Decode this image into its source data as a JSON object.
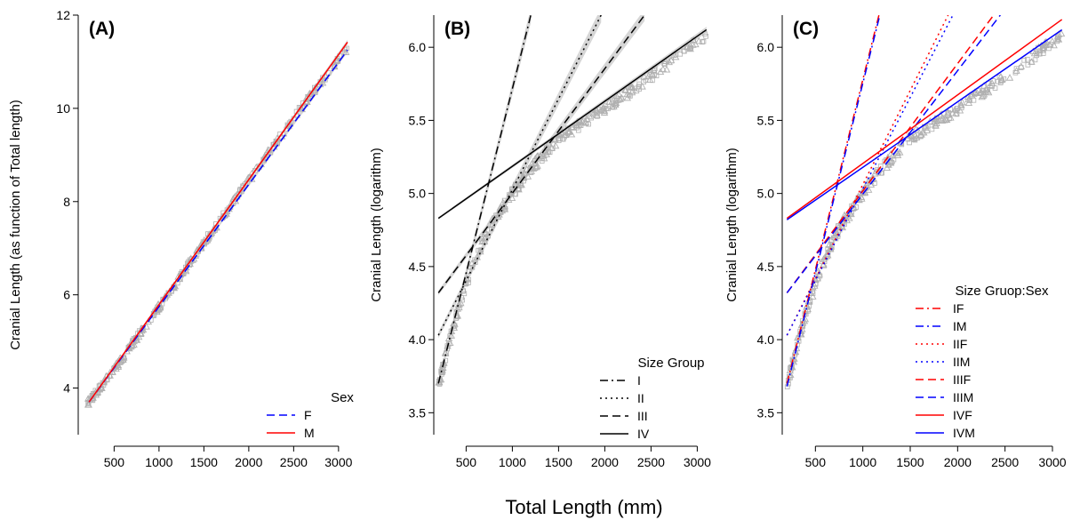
{
  "figure": {
    "x_axis_title": "Total Length (mm)"
  },
  "chart_data": [
    {
      "type": "scatter",
      "panel_label": "(A)",
      "xlabel": "Total Length (mm)",
      "ylabel": "Cranial Length (as function of Total length)",
      "xlim": [
        100,
        3150
      ],
      "ylim": [
        3.0,
        12.0
      ],
      "x_ticks": [
        500,
        1000,
        1500,
        2000,
        2500,
        3000
      ],
      "y_ticks": [
        4,
        6,
        8,
        10,
        12
      ],
      "grid": false,
      "legend": {
        "title": "Sex",
        "placement": "bottom-right"
      },
      "series": [
        {
          "name": "F",
          "color": "#0000ff",
          "dash": "dashed",
          "x": [
            220,
            3100
          ],
          "y": [
            3.7,
            11.25
          ],
          "band": 0.05
        },
        {
          "name": "M",
          "color": "#ff0000",
          "dash": "solid",
          "x": [
            220,
            3100
          ],
          "y": [
            3.7,
            11.42
          ],
          "band": 0.05
        }
      ],
      "points": {
        "markers": [
          "triangle",
          "square"
        ],
        "color": "#b0b0b0",
        "curve": [
          [
            220,
            3.7
          ],
          [
            500,
            4.4
          ],
          [
            1000,
            5.75
          ],
          [
            1500,
            7.12
          ],
          [
            2000,
            8.45
          ],
          [
            2500,
            9.8
          ],
          [
            3100,
            11.3
          ]
        ],
        "spread": 0.07,
        "count": 320,
        "xrange": [
          210,
          3100
        ]
      }
    },
    {
      "type": "scatter",
      "panel_label": "(B)",
      "xlabel": "Total Length (mm)",
      "ylabel": "Cranial Length (logarithm)",
      "xlim": [
        150,
        3150
      ],
      "ylim": [
        3.35,
        6.22
      ],
      "x_ticks": [
        500,
        1000,
        1500,
        2000,
        2500,
        3000
      ],
      "y_ticks": [
        3.5,
        4.0,
        4.5,
        5.0,
        5.5,
        6.0
      ],
      "grid": false,
      "legend": {
        "title": "Size Group",
        "placement": "bottom-right"
      },
      "series": [
        {
          "name": "I",
          "color": "#000000",
          "dash": "dashdot",
          "x": [
            200,
            1200
          ],
          "y": [
            3.7,
            6.22
          ],
          "band": 0.05
        },
        {
          "name": "II",
          "color": "#000000",
          "dash": "dotted",
          "x": [
            200,
            1960
          ],
          "y": [
            4.03,
            6.22
          ],
          "band": 0.05
        },
        {
          "name": "III",
          "color": "#000000",
          "dash": "dashed",
          "x": [
            200,
            2430
          ],
          "y": [
            4.32,
            6.22
          ],
          "band": 0.04
        },
        {
          "name": "IV",
          "color": "#000000",
          "dash": "solid",
          "x": [
            200,
            3100
          ],
          "y": [
            4.83,
            6.12
          ],
          "band": 0.02
        }
      ],
      "points": {
        "markers": [
          "triangle",
          "square"
        ],
        "color": "#b0b0b0",
        "curve": [
          [
            200,
            3.68
          ],
          [
            300,
            3.95
          ],
          [
            400,
            4.18
          ],
          [
            500,
            4.38
          ],
          [
            600,
            4.56
          ],
          [
            700,
            4.7
          ],
          [
            800,
            4.81
          ],
          [
            1000,
            5.0
          ],
          [
            1200,
            5.17
          ],
          [
            1500,
            5.38
          ],
          [
            2000,
            5.58
          ],
          [
            2500,
            5.8
          ],
          [
            3100,
            6.08
          ]
        ],
        "spread": 0.035,
        "count": 320,
        "xrange": [
          200,
          3100
        ]
      }
    },
    {
      "type": "scatter",
      "panel_label": "(C)",
      "xlabel": "Total Length (mm)",
      "ylabel": "Cranial Length (logarithm)",
      "xlim": [
        150,
        3150
      ],
      "ylim": [
        3.35,
        6.22
      ],
      "x_ticks": [
        500,
        1000,
        1500,
        2000,
        2500,
        3000
      ],
      "y_ticks": [
        3.5,
        4.0,
        4.5,
        5.0,
        5.5,
        6.0
      ],
      "grid": false,
      "legend": {
        "title": "Size Gruop:Sex",
        "placement": "bottom-right"
      },
      "series": [
        {
          "name": "IF",
          "color": "#ff0000",
          "dash": "dashdot",
          "x": [
            200,
            1170
          ],
          "y": [
            3.7,
            6.22
          ],
          "band": 0
        },
        {
          "name": "IM",
          "color": "#0000ff",
          "dash": "dashdot",
          "x": [
            200,
            1180
          ],
          "y": [
            3.68,
            6.22
          ],
          "band": 0
        },
        {
          "name": "IIF",
          "color": "#ff0000",
          "dash": "dotted",
          "x": [
            200,
            1900
          ],
          "y": [
            4.03,
            6.22
          ],
          "band": 0
        },
        {
          "name": "IIM",
          "color": "#0000ff",
          "dash": "dotted",
          "x": [
            200,
            1950
          ],
          "y": [
            4.03,
            6.22
          ],
          "band": 0
        },
        {
          "name": "IIIF",
          "color": "#ff0000",
          "dash": "dashed",
          "x": [
            200,
            2380
          ],
          "y": [
            4.32,
            6.22
          ],
          "band": 0
        },
        {
          "name": "IIIM",
          "color": "#0000ff",
          "dash": "dashed",
          "x": [
            200,
            2450
          ],
          "y": [
            4.32,
            6.22
          ],
          "band": 0
        },
        {
          "name": "IVF",
          "color": "#ff0000",
          "dash": "solid",
          "x": [
            200,
            3100
          ],
          "y": [
            4.83,
            6.19
          ],
          "band": 0
        },
        {
          "name": "IVM",
          "color": "#0000ff",
          "dash": "solid",
          "x": [
            200,
            3100
          ],
          "y": [
            4.82,
            6.12
          ],
          "band": 0
        }
      ],
      "points": {
        "markers": [
          "triangle",
          "square"
        ],
        "color": "#b0b0b0",
        "curve": [
          [
            200,
            3.68
          ],
          [
            300,
            3.95
          ],
          [
            400,
            4.18
          ],
          [
            500,
            4.38
          ],
          [
            600,
            4.56
          ],
          [
            700,
            4.7
          ],
          [
            800,
            4.81
          ],
          [
            1000,
            5.0
          ],
          [
            1200,
            5.17
          ],
          [
            1500,
            5.38
          ],
          [
            2000,
            5.58
          ],
          [
            2500,
            5.8
          ],
          [
            3100,
            6.08
          ]
        ],
        "spread": 0.035,
        "count": 320,
        "xrange": [
          200,
          3100
        ]
      }
    }
  ]
}
